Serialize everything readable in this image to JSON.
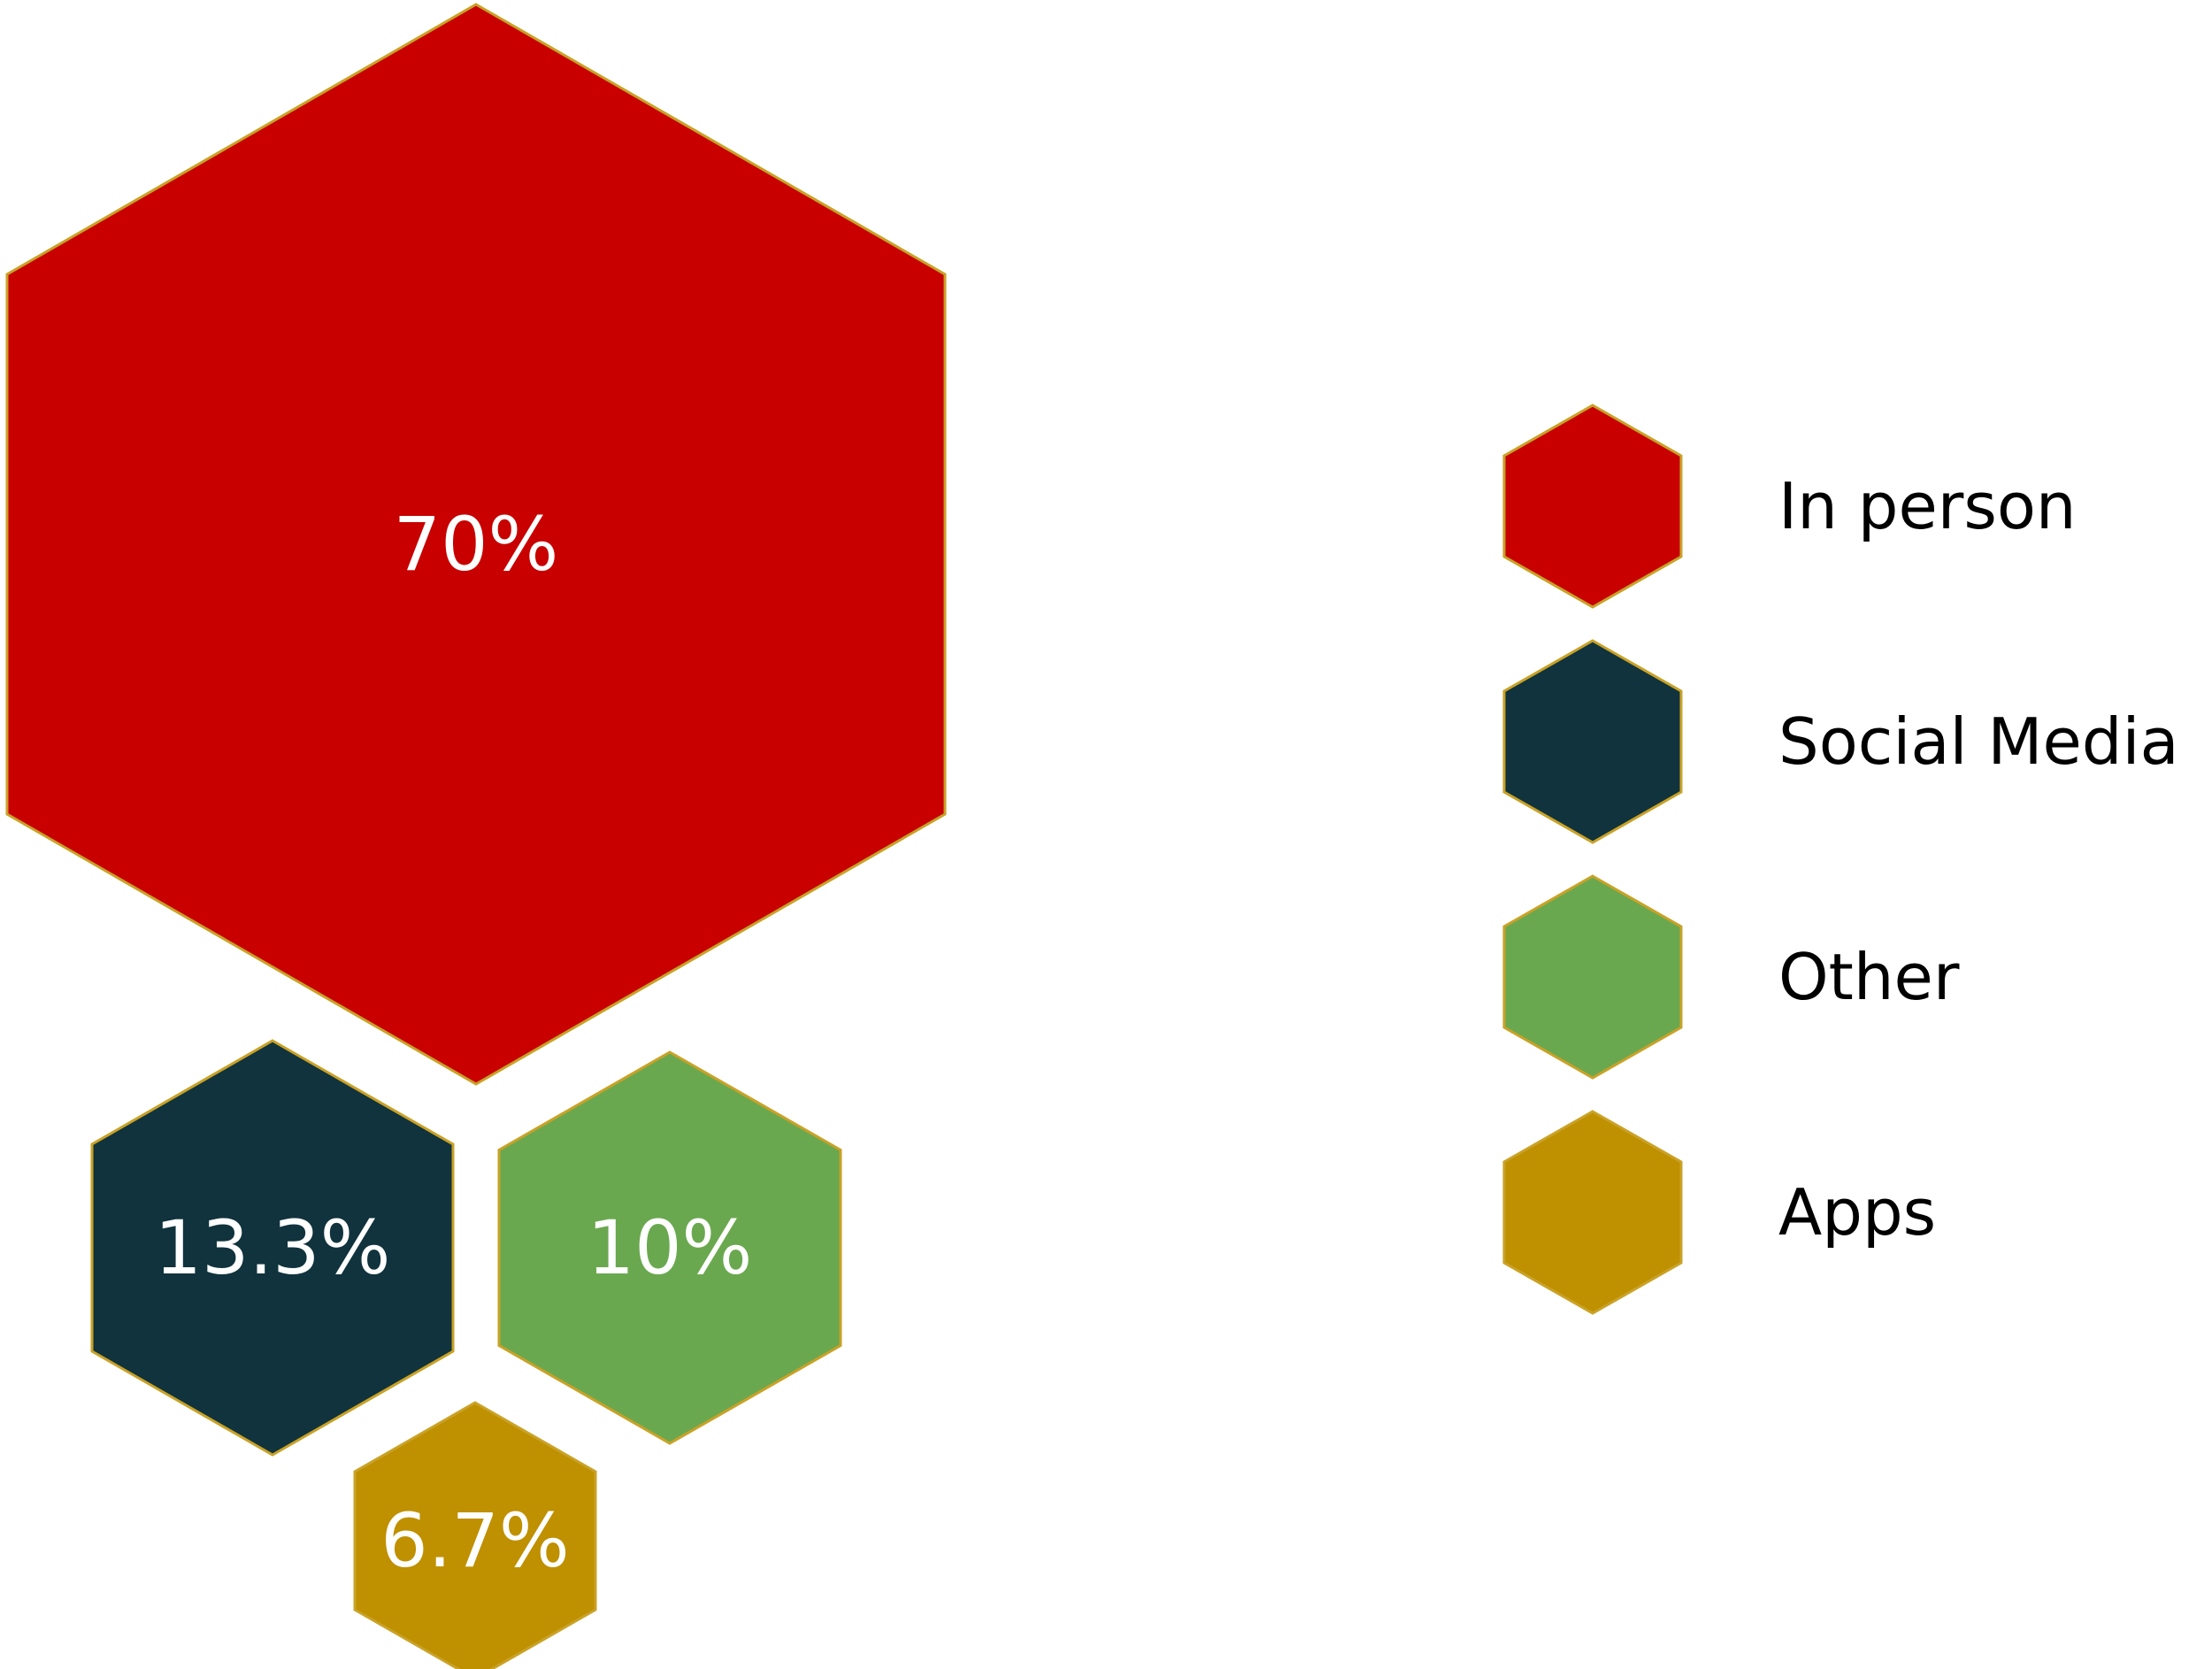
{
  "chart_data": {
    "type": "hexagon-bubble",
    "series": [
      {
        "name": "In person",
        "value": 70,
        "label": "70%",
        "color": "#C80000"
      },
      {
        "name": "Social Media",
        "value": 13.3,
        "label": "13.3%",
        "color": "#10333D"
      },
      {
        "name": "Other",
        "value": 10,
        "label": "10%",
        "color": "#6AA84F"
      },
      {
        "name": "Apps",
        "value": 6.7,
        "label": "6.7%",
        "color": "#BF9000"
      }
    ],
    "outline_color": "#C9A227",
    "legend_position": "right"
  }
}
